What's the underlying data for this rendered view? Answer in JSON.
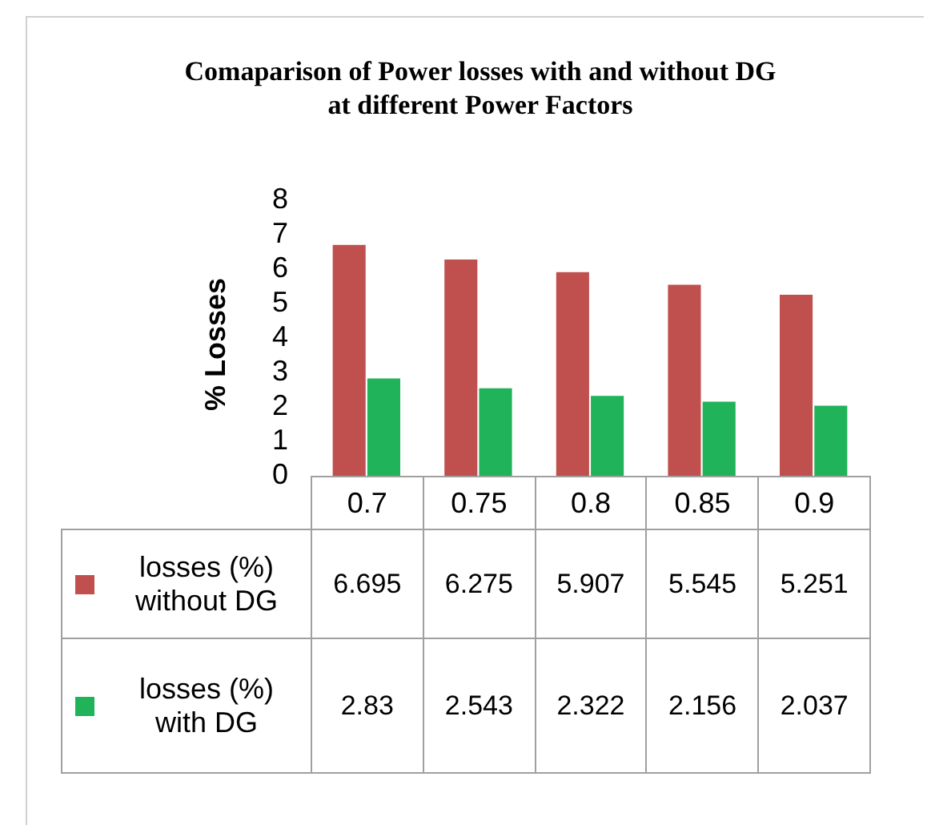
{
  "chart_data": {
    "type": "bar",
    "title": "Comaparison of Power losses with and without DG at different Power Factors",
    "ylabel": "% Losses",
    "categories": [
      "0.7",
      "0.75",
      "0.8",
      "0.85",
      "0.9"
    ],
    "series": [
      {
        "name": "losses (%) without DG",
        "color": "#c0504d",
        "values": [
          6.695,
          6.275,
          5.907,
          5.545,
          5.251
        ]
      },
      {
        "name": "losses (%) with DG",
        "color": "#21b35a",
        "values": [
          2.83,
          2.543,
          2.322,
          2.156,
          2.037
        ]
      }
    ],
    "ylim": [
      0,
      8
    ],
    "yticks": [
      0,
      1,
      2,
      3,
      4,
      5,
      6,
      7,
      8
    ],
    "grid": false,
    "legend": "bottom",
    "data_labels": true
  }
}
